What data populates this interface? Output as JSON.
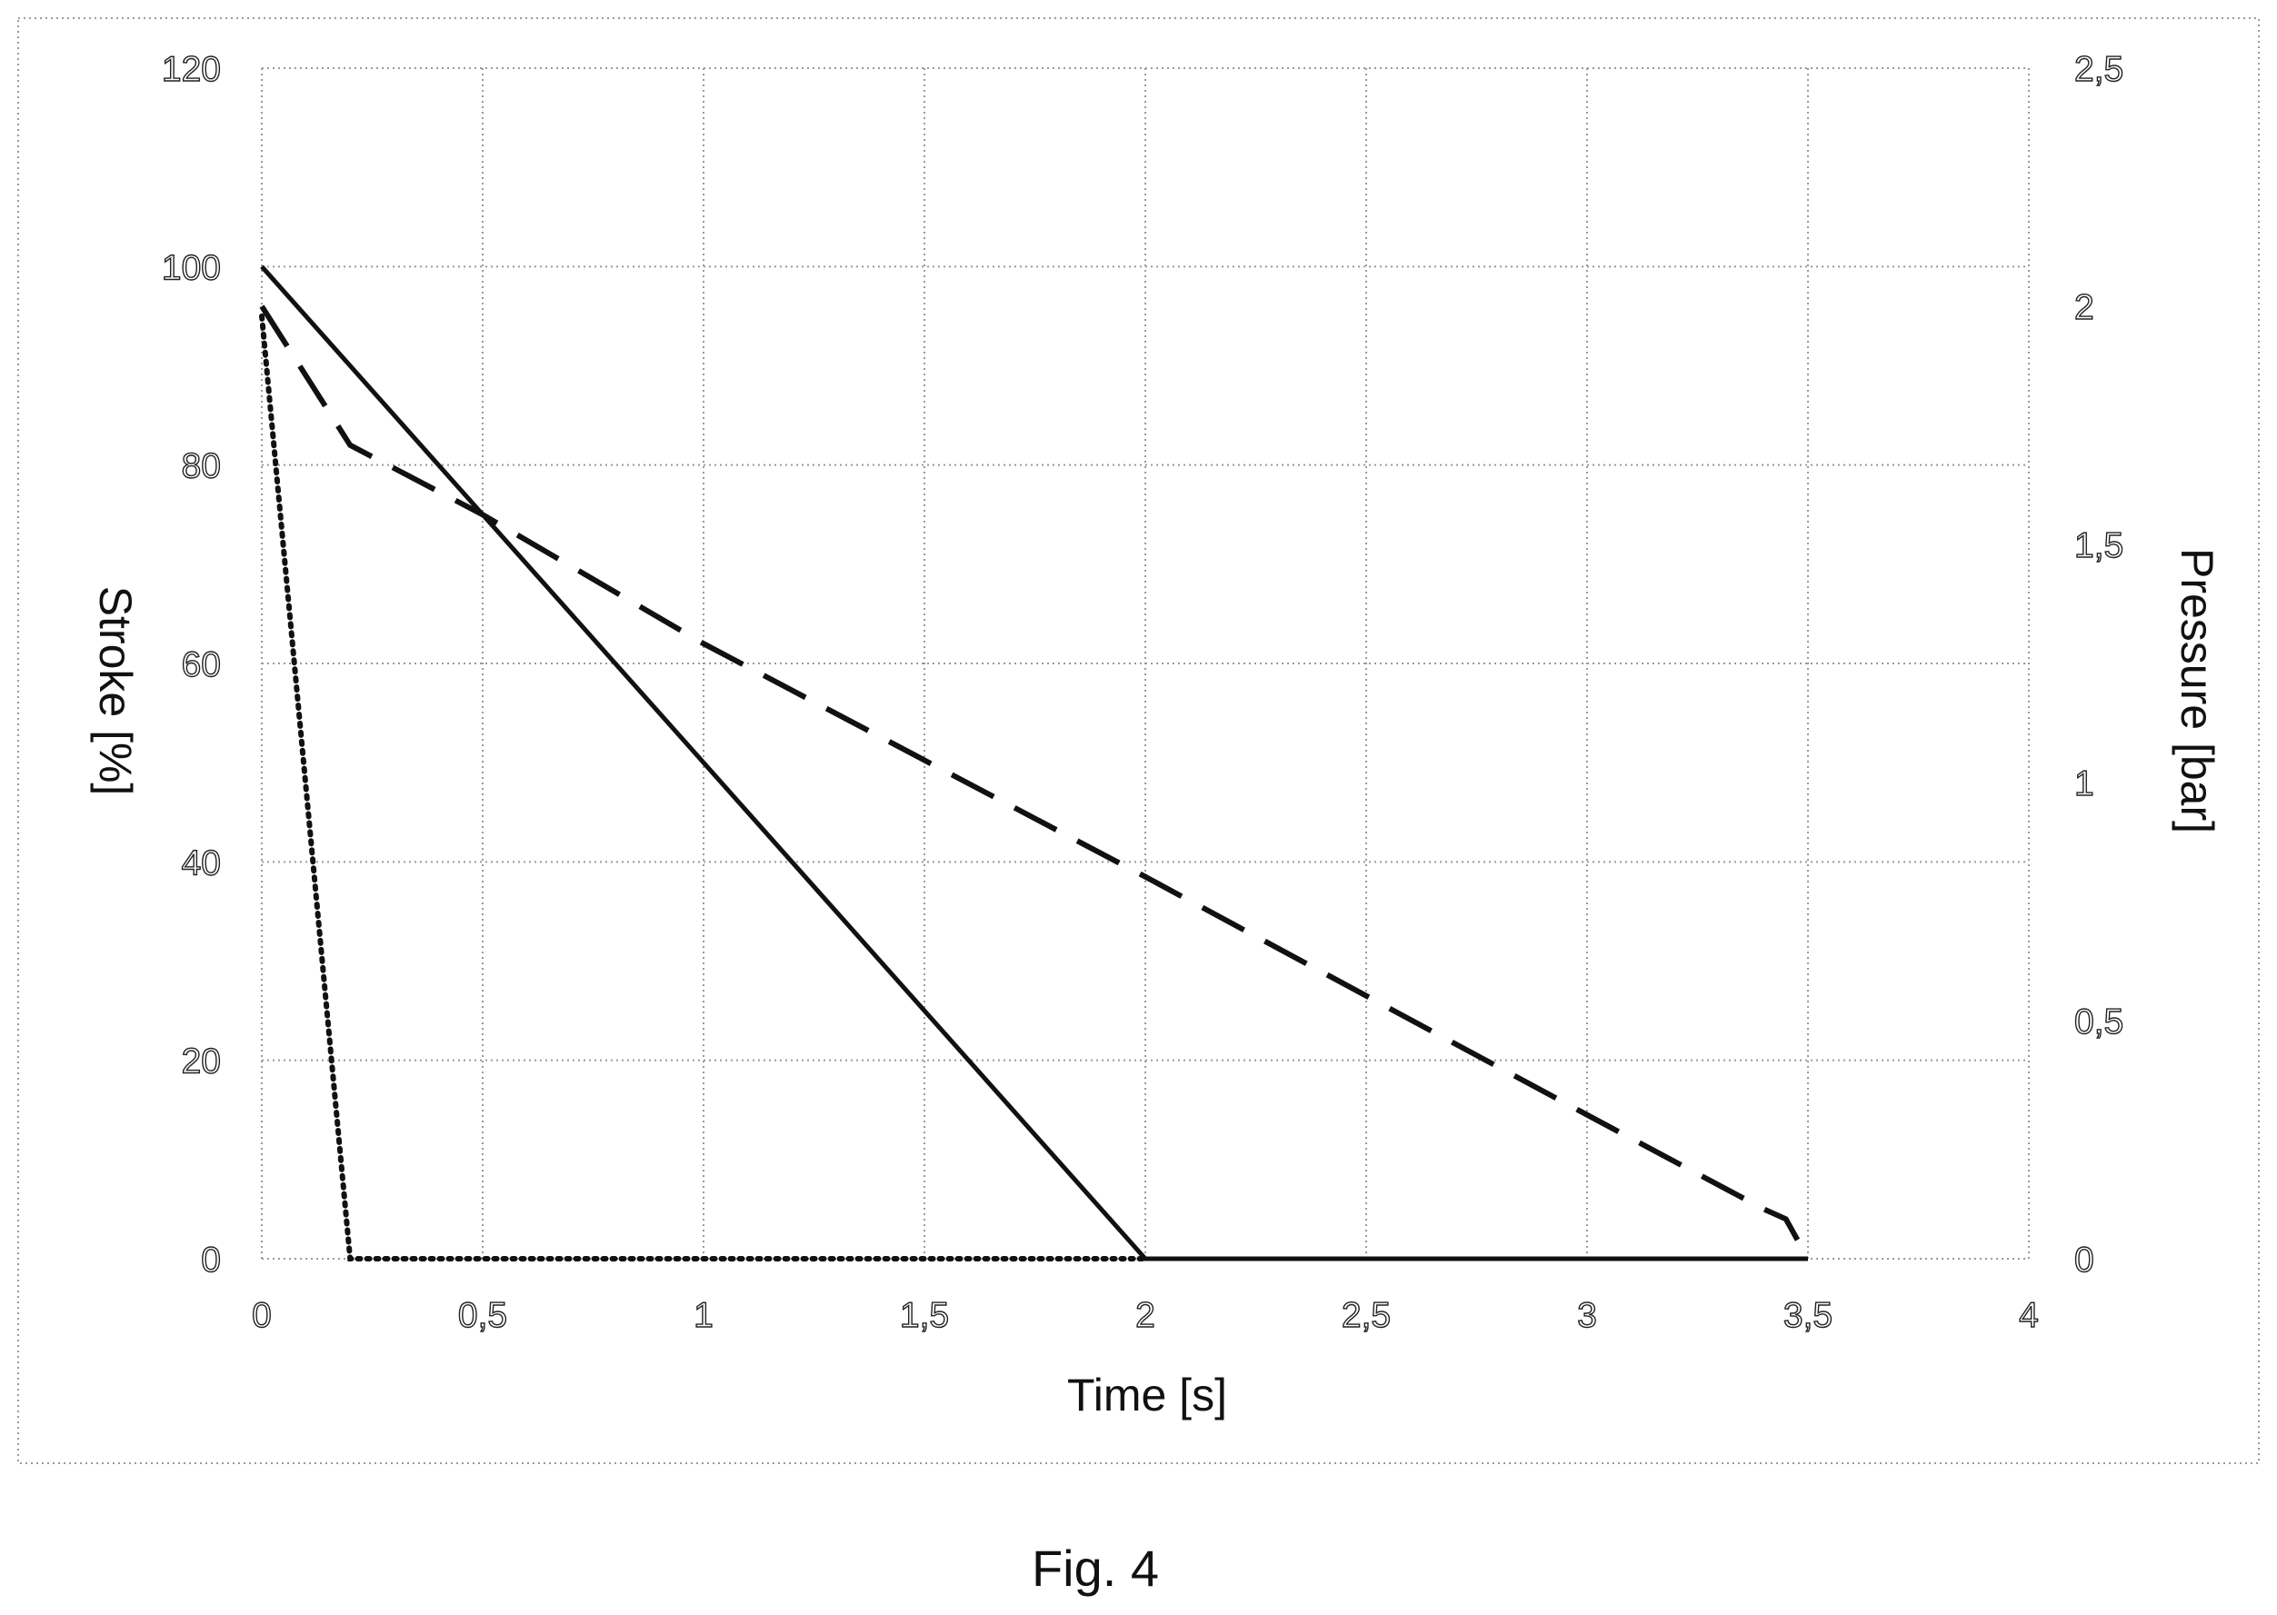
{
  "chart_data": {
    "type": "line",
    "caption": "Fig. 4",
    "xlabel": "Time [s]",
    "ylabel_left": "Stroke [%]",
    "ylabel_right": "Pressure [bar]",
    "xlim": [
      0,
      4
    ],
    "ylim_left": [
      0,
      120
    ],
    "ylim_right": [
      0,
      2.5
    ],
    "x_ticks": [
      0,
      0.5,
      1,
      1.5,
      2,
      2.5,
      3,
      3.5,
      4
    ],
    "x_tick_labels": [
      "0",
      "0,5",
      "1",
      "1,5",
      "2",
      "2,5",
      "3",
      "3,5",
      "4"
    ],
    "y_left_ticks": [
      0,
      20,
      40,
      60,
      80,
      100,
      120
    ],
    "y_left_tick_labels": [
      "0",
      "20",
      "40",
      "60",
      "80",
      "100",
      "120"
    ],
    "y_right_ticks": [
      0,
      0.5,
      1,
      1.5,
      2,
      2.5
    ],
    "y_right_tick_labels": [
      "0",
      "0,5",
      "1",
      "1,5",
      "2",
      "2,5"
    ],
    "grid": true,
    "legend": "none",
    "series": [
      {
        "style": "solid",
        "axis": "left",
        "x": [
          0,
          2,
          3.5
        ],
        "y": [
          100,
          0,
          0
        ]
      },
      {
        "style": "dashed",
        "axis": "left",
        "x": [
          0,
          0.2,
          0.5,
          1,
          2,
          2.5,
          3,
          3.4,
          3.45,
          3.5
        ],
        "y": [
          96,
          82,
          75,
          62,
          38.5,
          26.5,
          14.5,
          5,
          4,
          0
        ]
      },
      {
        "style": "dotted",
        "axis": "left",
        "x": [
          0,
          0.2,
          2
        ],
        "y": [
          95,
          0,
          0
        ]
      }
    ]
  }
}
